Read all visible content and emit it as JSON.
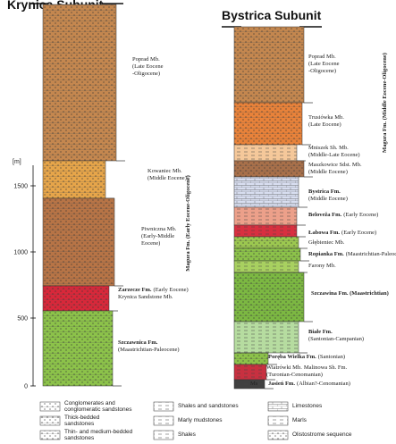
{
  "columns": [
    {
      "title": "Krynica Subunit",
      "group": "Magura Fm. (Early Eocene-Oligocene)",
      "units": [
        {
          "name": "Poprad Mb.",
          "desc": [
            "(Late Eocene",
            "-Oligocene)"
          ]
        },
        {
          "name": "Kowaniec Mb.",
          "desc": [
            "(Middle Eocene)"
          ]
        },
        {
          "name": "Piwniczna Mb.",
          "desc": [
            "(Early-Middle",
            "Eocene)"
          ]
        },
        {
          "name": "Zarzecze Fm.",
          "bold": true,
          "inline": "(Early Eocene)",
          "desc": [
            "Krynica Sandstone Mb."
          ]
        },
        {
          "name": "Szczawnica Fm.",
          "bold": true,
          "desc": [
            "(Maastrichtian-Paleocene)"
          ]
        }
      ]
    },
    {
      "title": "Bystrica Subunit",
      "group": "Magura Fm. (Middle Eocene-Oligocene)",
      "marker": "Ms",
      "units": [
        {
          "name": "Poprad Mb.",
          "desc": [
            "(Late Eocene",
            "-Oligocene)"
          ]
        },
        {
          "name": "Trusiówka Mb.",
          "desc": [
            "(Late Eocene)"
          ]
        },
        {
          "name": "Mniszek Sh. Mb.",
          "desc": [
            "(Middle-Late Eocene)"
          ]
        },
        {
          "name": "Maszkowice Sdst. Mb.",
          "desc": [
            "(Middle Eocene)"
          ]
        },
        {
          "name": "Bystrica Fm.",
          "bold": true,
          "desc": [
            "(Middle Eocene)"
          ]
        },
        {
          "name": "Beloveža Fm.",
          "bold": true,
          "inline": "(Early Eocene)",
          "desc": []
        },
        {
          "name": "Łabowa Fm.",
          "bold": true,
          "inline": "(Early Eocene)",
          "desc": []
        },
        {
          "name": "Głębieniec Mb.",
          "desc": []
        },
        {
          "name": "Ropianka Fm.",
          "bold": true,
          "inline": "(Maastrichtian-Paleocene)",
          "desc": []
        },
        {
          "name": "Farony Mb.",
          "desc": []
        },
        {
          "name": "Szczawina Fm. (Maastrichtian)",
          "bold": true,
          "desc": []
        },
        {
          "name": "Białe Fm.",
          "bold": true,
          "desc": [
            "(Santonian-Campanian)"
          ]
        },
        {
          "name": "Poręba Wielka Fm.",
          "bold": true,
          "inline": "(Santonian)",
          "desc": []
        },
        {
          "name": "Wiatrówki Mb.",
          "inline": "Malinowa Sh. Fm.",
          "desc": [
            "(Turonian-Cenomanian)"
          ]
        },
        {
          "name": "Jasień Fm.",
          "bold": true,
          "inline": "(Albian?-Cenomanian)",
          "desc": []
        }
      ]
    }
  ],
  "scale": {
    "unit": "[m]",
    "ticks": [
      "0",
      "500",
      "1000",
      "1500"
    ]
  },
  "legend": [
    [
      "Conglomerates and",
      "conglomeratic sandstones"
    ],
    [
      "Thick-bedded",
      "sandstones"
    ],
    [
      "Thin- and medium-bedded",
      "sandstones"
    ],
    [
      "Shales and sandstones"
    ],
    [
      "Marly mudstones"
    ],
    [
      "Shales"
    ],
    [
      "Limestones"
    ],
    [
      "Marls"
    ],
    [
      "Olistostrome sequence"
    ]
  ]
}
